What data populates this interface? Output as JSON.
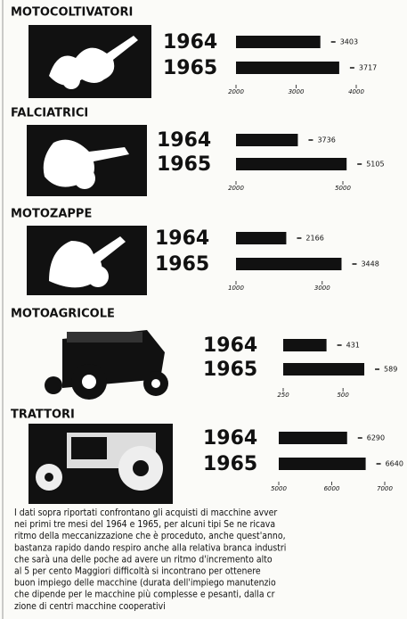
{
  "chart_data": [
    {
      "type": "bar",
      "title": "MOTOCOLTIVATORI",
      "categories": [
        "1964",
        "1965"
      ],
      "values": [
        3403,
        3717
      ],
      "color": "#111111",
      "xlim": [
        2000,
        4000
      ],
      "xticks": [
        2000,
        3000,
        4000
      ]
    },
    {
      "type": "bar",
      "title": "FALCIATRICI",
      "categories": [
        "1964",
        "1965"
      ],
      "values": [
        3736,
        5105
      ],
      "color": "#111111",
      "xlim": [
        2000,
        5500
      ],
      "xticks": [
        2000,
        5000
      ]
    },
    {
      "type": "bar",
      "title": "MOTOZAPPE",
      "categories": [
        "1964",
        "1965"
      ],
      "values": [
        2166,
        3448
      ],
      "color": "#111111",
      "xlim": [
        1000,
        3500
      ],
      "xticks": [
        1000,
        3000
      ]
    },
    {
      "type": "bar",
      "title": "MOTOAGRICOLE",
      "categories": [
        "1964",
        "1965"
      ],
      "values": [
        431,
        589
      ],
      "color": "#111111",
      "xlim": [
        250,
        600
      ],
      "xticks": [
        250,
        500
      ]
    },
    {
      "type": "bar",
      "title": "TRATTORI",
      "categories": [
        "1964",
        "1965"
      ],
      "values": [
        6290,
        6640
      ],
      "color": "#111111",
      "xlim": [
        5000,
        7000
      ],
      "xticks": [
        5000,
        6000,
        7000
      ]
    }
  ],
  "caption": [
    "I dati sopra riportati confrontano gli acquisti di macchine avver",
    "nei primi tre mesi del 1964 e 1965, per alcuni tipi Se ne ricava",
    "ritmo della meccanizzazione che è proceduto, anche quest'anno,",
    "bastanza rapido dando respiro anche alla relativa branca industri",
    "che sarà una delle poche ad avere un ritmo d'incremento alto",
    "al 5 per cento Maggiori difficoltà si incontrano per ottenere",
    "buon impiego delle macchine (durata dell'impiego manutenzio",
    "che dipende per le macchine più complesse e pesanti, dalla cr",
    "zione di centri macchine cooperativi"
  ]
}
